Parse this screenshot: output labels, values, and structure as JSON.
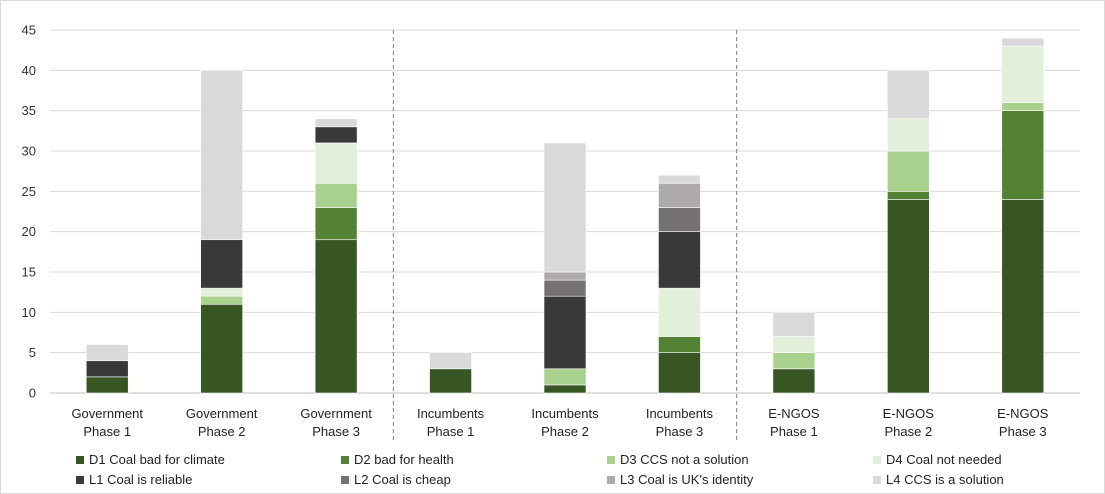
{
  "chart_data": {
    "type": "bar",
    "stacked": true,
    "title": "",
    "xlabel": "",
    "ylabel": "",
    "ylim": [
      0,
      45
    ],
    "yticks": [
      0,
      5,
      10,
      15,
      20,
      25,
      30,
      35,
      40,
      45
    ],
    "grid": true,
    "legend_position": "bottom",
    "group_separators_after": [
      2,
      5
    ],
    "categories": [
      [
        "Government",
        "Phase 1"
      ],
      [
        "Government",
        "Phase 2"
      ],
      [
        "Government",
        "Phase 3"
      ],
      [
        "Incumbents",
        "Phase 1"
      ],
      [
        "Incumbents",
        "Phase 2"
      ],
      [
        "Incumbents",
        "Phase 3"
      ],
      [
        "E-NGOS",
        "Phase 1"
      ],
      [
        "E-NGOS",
        "Phase 2"
      ],
      [
        "E-NGOS",
        "Phase 3"
      ]
    ],
    "series": [
      {
        "name": "D1  Coal bad for climate",
        "color": "#375623",
        "values": [
          2,
          11,
          19,
          3,
          1,
          5,
          3,
          24,
          24
        ]
      },
      {
        "name": "D2  bad for health",
        "color": "#548235",
        "values": [
          0,
          0,
          4,
          0,
          0,
          2,
          0,
          1,
          11
        ]
      },
      {
        "name": "D3  CCS not a solution",
        "color": "#a9d18e",
        "values": [
          0,
          1,
          3,
          0,
          2,
          0,
          2,
          5,
          1
        ]
      },
      {
        "name": "D4  Coal not needed",
        "color": "#e2efda",
        "values": [
          0,
          1,
          5,
          0,
          0,
          6,
          2,
          4,
          7
        ]
      },
      {
        "name": "L1  Coal is reliable",
        "color": "#3a3838",
        "values": [
          2,
          6,
          2,
          0,
          9,
          7,
          0,
          0,
          0
        ]
      },
      {
        "name": "L2  Coal is cheap",
        "color": "#767171",
        "values": [
          0,
          0,
          0,
          0,
          2,
          3,
          0,
          0,
          0
        ]
      },
      {
        "name": "L3  Coal is UK's identity",
        "color": "#aeaaaa",
        "values": [
          0,
          0,
          0,
          0,
          1,
          3,
          0,
          0,
          0
        ]
      },
      {
        "name": "L4  CCS is a solution",
        "color": "#d9d9d9",
        "values": [
          2,
          21,
          1,
          2,
          16,
          1,
          3,
          6,
          1
        ]
      }
    ]
  }
}
